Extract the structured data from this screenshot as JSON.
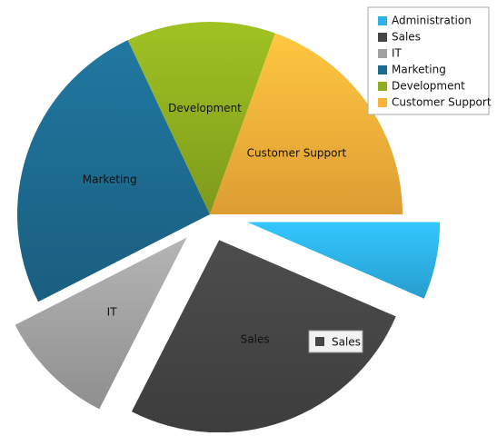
{
  "chart_data": {
    "type": "pie",
    "categories": [
      "Administration",
      "Sales",
      "IT",
      "Marketing",
      "Development",
      "Customer Support"
    ],
    "values": [
      6.5,
      26,
      10,
      25.5,
      12.5,
      19.5
    ],
    "colors": [
      "#2db2ea",
      "#454545",
      "#a2a2a2",
      "#1d6b90",
      "#8fae1f",
      "#fbb23a"
    ],
    "legend": "top-right"
  }
}
